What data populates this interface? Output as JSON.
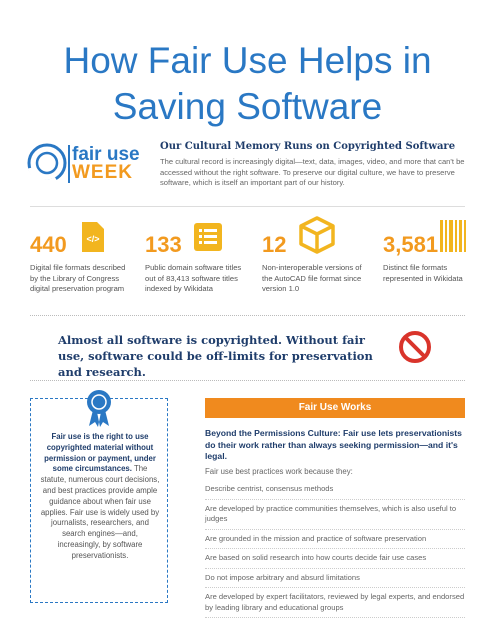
{
  "header": {
    "title": "How Fair Use Helps in Saving Software"
  },
  "logo": {
    "line1": "fair use",
    "line2": "week"
  },
  "intro": {
    "heading": "Our Cultural Memory Runs on Copyrighted Software",
    "text": "The cultural record is increasingly digital—text, data, images, video, and more that can't be accessed without the right software. To preserve our digital culture, we have to preserve software, which is itself an important part of our history."
  },
  "stats": [
    {
      "number": "440",
      "text": "Digital file formats described by the Library of Congress digital preservation program"
    },
    {
      "number": "133",
      "text": "Public domain software titles out of 83,413 software titles indexed by Wikidata"
    },
    {
      "number": "12",
      "text": "Non-interoperable versions of the AutoCAD file format since version 1.0"
    },
    {
      "number": "3,581",
      "text": "Distinct file formats represented in Wikidata"
    }
  ],
  "callout": "Almost all software is copyrighted. Without fair use, software could be off-limits for preservation and research.",
  "sidebar": {
    "bold": "Fair use is the right to use copyrighted material without permission or payment, under some circumstances.",
    "text": " The statute, numerous court decisions, and best practices provide ample guidance about when fair use applies. Fair use is widely used by journalists, researchers, and search engines—and, increasingly, by software preservationists."
  },
  "works": {
    "banner": "Fair Use Works",
    "lead": "Beyond the Permissions Culture: Fair use lets preservationists do their work rather than always seeking permission—and it's legal.",
    "intro": "Fair use best practices work because they:",
    "bullets": [
      "Describe centrist, consensus methods",
      "Are developed by practice communities themselves, which is also useful to judges",
      "Are grounded in the mission and practice of software preservation",
      "Are based on solid research into how courts decide fair use cases",
      "Do not impose arbitrary and absurd limitations",
      "Are developed by expert facilitators, reviewed by legal experts, and endorsed by leading library and educational groups"
    ]
  }
}
